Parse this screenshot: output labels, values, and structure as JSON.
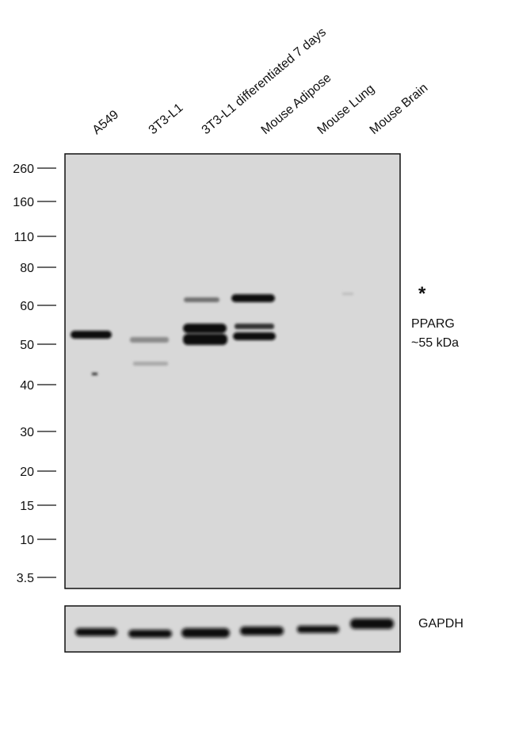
{
  "lanes": [
    "A549",
    "3T3-L1",
    "3T3-L1 differentiated 7 days",
    "Mouse Adipose",
    "Mouse Lung",
    "Mouse Brain"
  ],
  "markers": [
    "260",
    "160",
    "110",
    "80",
    "60",
    "50",
    "40",
    "30",
    "20",
    "15",
    "10",
    "3.5"
  ],
  "annotations": {
    "asterisk": "*",
    "target": "PPARG",
    "size": "~55 kDa",
    "loading_control": "GAPDH"
  }
}
